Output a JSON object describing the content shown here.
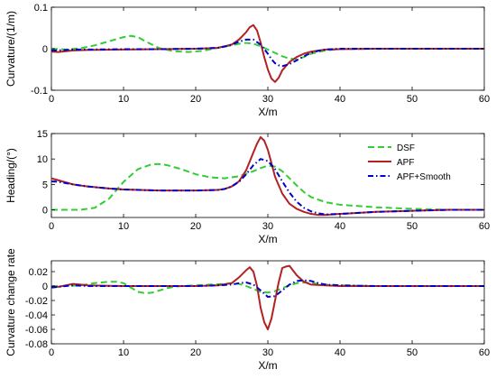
{
  "chart_data": [
    {
      "type": "line",
      "xlabel": "X/m",
      "ylabel": "Curvature/(1/m)",
      "xlim": [
        0,
        60
      ],
      "ylim": [
        -0.1,
        0.1
      ],
      "xticks": [
        "0",
        "10",
        "20",
        "30",
        "40",
        "50",
        "60"
      ],
      "xtick_values": [
        0,
        10,
        20,
        30,
        40,
        50,
        60
      ],
      "yticks": [
        "-0.1",
        "0",
        "0.1"
      ],
      "ytick_values": [
        -0.1,
        0,
        0.1
      ],
      "grid": false,
      "series": [
        {
          "color": "#33cc33",
          "style": "dashed",
          "x": [
            0,
            2,
            4,
            6,
            8,
            10,
            11,
            12,
            13,
            15,
            17,
            19,
            21,
            23,
            25,
            26,
            27,
            28,
            29,
            30,
            31,
            32,
            33,
            34,
            35,
            36,
            38,
            40,
            45,
            50,
            55,
            60
          ],
          "y": [
            0,
            -0.002,
            0.001,
            0.008,
            0.018,
            0.028,
            0.031,
            0.028,
            0.018,
            0.001,
            -0.006,
            -0.008,
            -0.005,
            0.002,
            0.008,
            0.012,
            0.014,
            0.012,
            0.006,
            -0.002,
            -0.01,
            -0.018,
            -0.024,
            -0.025,
            -0.02,
            -0.012,
            -0.004,
            -0.001,
            0,
            0,
            0,
            0
          ]
        },
        {
          "color": "#b22222",
          "style": "solid",
          "x": [
            0,
            1,
            2,
            3,
            5,
            10,
            15,
            20,
            23,
            25,
            26,
            27,
            27.5,
            28,
            28.5,
            29,
            29.5,
            30,
            30.5,
            31,
            31.5,
            32,
            33,
            34,
            35,
            36,
            38,
            40,
            45,
            50,
            55,
            60
          ],
          "y": [
            -0.007,
            -0.008,
            -0.006,
            -0.004,
            -0.003,
            -0.002,
            -0.001,
            0,
            0.002,
            0.01,
            0.022,
            0.04,
            0.052,
            0.057,
            0.044,
            0.015,
            -0.02,
            -0.05,
            -0.072,
            -0.08,
            -0.07,
            -0.052,
            -0.032,
            -0.02,
            -0.012,
            -0.007,
            -0.002,
            -0.001,
            0,
            0,
            0,
            0
          ]
        },
        {
          "color": "#0000cc",
          "style": "dashdot",
          "x": [
            0,
            1,
            2,
            3,
            5,
            10,
            15,
            20,
            23,
            24,
            25,
            26,
            27,
            28,
            29,
            30,
            30.5,
            31,
            31.5,
            32,
            33,
            34,
            35,
            36,
            37,
            38,
            40,
            45,
            50,
            55,
            60
          ],
          "y": [
            -0.004,
            -0.004,
            -0.003,
            -0.002,
            -0.002,
            -0.001,
            -0.001,
            0,
            0.002,
            0.005,
            0.01,
            0.017,
            0.022,
            0.022,
            0.01,
            -0.012,
            -0.025,
            -0.035,
            -0.04,
            -0.042,
            -0.037,
            -0.028,
            -0.018,
            -0.01,
            -0.005,
            -0.002,
            0,
            0,
            0,
            0,
            0
          ]
        }
      ]
    },
    {
      "type": "line",
      "xlabel": "X/m",
      "ylabel": "Heading/(°)",
      "xlim": [
        0,
        60
      ],
      "ylim": [
        -1.5,
        15
      ],
      "xticks": [
        "0",
        "10",
        "20",
        "30",
        "40",
        "50",
        "60"
      ],
      "xtick_values": [
        0,
        10,
        20,
        30,
        40,
        50,
        60
      ],
      "yticks": [
        "0",
        "5",
        "10",
        "15"
      ],
      "ytick_values": [
        0,
        5,
        10,
        15
      ],
      "grid": false,
      "legend": {
        "position": "top-right",
        "entries": [
          "DSF",
          "APF",
          "APF+Smooth"
        ]
      },
      "series": [
        {
          "name": "DSF",
          "color": "#33cc33",
          "style": "dashed",
          "x": [
            0,
            2,
            4,
            6,
            8,
            10,
            12,
            14,
            15,
            16,
            18,
            20,
            22,
            24,
            26,
            28,
            29,
            30,
            31,
            32,
            33,
            34,
            35,
            36,
            38,
            40,
            45,
            50,
            55,
            60
          ],
          "y": [
            0,
            0,
            0,
            0.4,
            2.2,
            5.5,
            8,
            9,
            9,
            8.8,
            8,
            7,
            6.4,
            6.2,
            6.6,
            7.6,
            8.2,
            8.7,
            8.5,
            7.6,
            6.2,
            4.8,
            3.5,
            2.5,
            1.5,
            1,
            0.5,
            0.2,
            0,
            0
          ]
        },
        {
          "name": "APF",
          "color": "#b22222",
          "style": "solid",
          "x": [
            0,
            1,
            3,
            5,
            8,
            10,
            15,
            20,
            23,
            24,
            25,
            26,
            27,
            28,
            28.5,
            29,
            29.5,
            30,
            30.5,
            31,
            32,
            33,
            34,
            35,
            36,
            37,
            38,
            40,
            45,
            50,
            55,
            60
          ],
          "y": [
            6.2,
            5.8,
            5,
            4.6,
            4.2,
            4,
            3.8,
            3.8,
            3.9,
            4.1,
            4.6,
            5.6,
            7.8,
            11.3,
            13,
            14.3,
            13.6,
            11.8,
            9.2,
            6.5,
            3.2,
            1.2,
            0.2,
            -0.4,
            -0.8,
            -1,
            -1,
            -0.8,
            -0.4,
            -0.2,
            0,
            0
          ]
        },
        {
          "name": "APF+Smooth",
          "color": "#0000cc",
          "style": "dashdot",
          "x": [
            0,
            1,
            3,
            5,
            8,
            10,
            15,
            20,
            23,
            24,
            25,
            26,
            27,
            28,
            29,
            30,
            31,
            32,
            33,
            34,
            35,
            36,
            37,
            38,
            40,
            45,
            50,
            55,
            60
          ],
          "y": [
            5.6,
            5.5,
            5,
            4.6,
            4.2,
            4,
            3.8,
            3.8,
            3.9,
            4.1,
            4.6,
            5.5,
            7,
            8.8,
            10,
            9.6,
            8,
            5.6,
            3.4,
            1.6,
            0.4,
            -0.3,
            -0.7,
            -0.9,
            -0.8,
            -0.4,
            -0.2,
            0,
            0
          ]
        }
      ]
    },
    {
      "type": "line",
      "xlabel": "X/m",
      "ylabel": "Curvature change rate",
      "xlim": [
        0,
        60
      ],
      "ylim": [
        -0.08,
        0.035
      ],
      "xticks": [
        "0",
        "10",
        "20",
        "30",
        "40",
        "50",
        "60"
      ],
      "xtick_values": [
        0,
        10,
        20,
        30,
        40,
        50,
        60
      ],
      "yticks": [
        "-0.08",
        "-0.06",
        "-0.04",
        "-0.02",
        "0",
        "0.02"
      ],
      "ytick_values": [
        -0.08,
        -0.06,
        -0.04,
        -0.02,
        0,
        0.02
      ],
      "grid": false,
      "series": [
        {
          "color": "#33cc33",
          "style": "dashed",
          "x": [
            0,
            2,
            4,
            6,
            8,
            9,
            10,
            11,
            12,
            13,
            14,
            15,
            16,
            17,
            18,
            20,
            22,
            24,
            25,
            26,
            27,
            28,
            29,
            30,
            31,
            32,
            33,
            34,
            35,
            36,
            38,
            40,
            45,
            50,
            55,
            60
          ],
          "y": [
            0,
            0,
            0.001,
            0.004,
            0.006,
            0.006,
            0.004,
            -0.002,
            -0.008,
            -0.01,
            -0.009,
            -0.006,
            -0.003,
            -0.001,
            0,
            0.001,
            0.002,
            0.003,
            0.004,
            0.003,
            0,
            -0.004,
            -0.008,
            -0.009,
            -0.007,
            -0.003,
            0.001,
            0.004,
            0.005,
            0.004,
            0.002,
            0.001,
            0,
            0,
            0,
            0
          ]
        },
        {
          "name": "",
          "color": "#b22222",
          "style": "solid",
          "x": [
            0,
            1,
            2,
            3,
            4,
            5,
            10,
            15,
            20,
            23,
            25,
            26,
            27,
            27.5,
            28,
            28.5,
            29,
            29.5,
            30,
            30.5,
            31,
            31.5,
            32,
            32.5,
            33,
            34,
            35,
            36,
            38,
            40,
            45,
            50,
            55,
            60
          ],
          "y": [
            -0.002,
            -0.001,
            0.001,
            0.003,
            0.002,
            0.001,
            0,
            0,
            0,
            0.001,
            0.004,
            0.012,
            0.022,
            0.026,
            0.02,
            0,
            -0.03,
            -0.05,
            -0.06,
            -0.045,
            -0.02,
            0.005,
            0.025,
            0.027,
            0.028,
            0.015,
            0.006,
            0.002,
            0.001,
            0,
            0,
            0,
            0,
            0
          ]
        },
        {
          "color": "#0000cc",
          "style": "dashdot",
          "x": [
            0,
            1,
            2,
            3,
            5,
            10,
            15,
            20,
            23,
            25,
            26,
            27,
            28,
            29,
            30,
            31,
            32,
            33,
            34,
            35,
            36,
            37,
            38,
            40,
            45,
            50,
            55,
            60
          ],
          "y": [
            -0.002,
            -0.001,
            0,
            0.001,
            0,
            0,
            0,
            0,
            0.001,
            0.002,
            0.004,
            0.005,
            0.002,
            -0.006,
            -0.015,
            -0.014,
            -0.006,
            0.002,
            0.007,
            0.008,
            0.007,
            0.004,
            0.002,
            0.001,
            0,
            0,
            0,
            0
          ]
        }
      ]
    }
  ]
}
